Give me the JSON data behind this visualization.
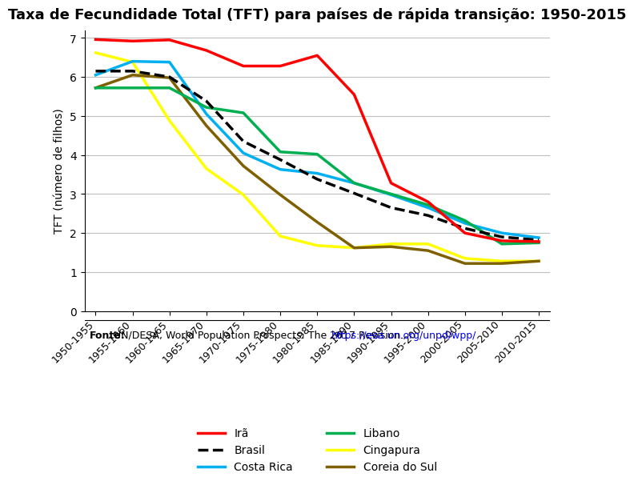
{
  "title": "Taxa de Fecundidade Total (TFT) para países de rápida transição: 1950-2015",
  "xlabel": "",
  "ylabel": "TFT (número de filhos)",
  "ylim": [
    0,
    7.2
  ],
  "yticks": [
    0,
    1,
    2,
    3,
    4,
    5,
    6,
    7
  ],
  "periods": [
    "1950-1955",
    "1955-1960",
    "1960-1965",
    "1965-1970",
    "1970-1975",
    "1975-1980",
    "1980-1985",
    "1985-1990",
    "1990-1995",
    "1995-2000",
    "2000-2005",
    "2005-2010",
    "2010-2015"
  ],
  "series": {
    "Irã": {
      "values": [
        6.96,
        6.92,
        6.95,
        6.68,
        6.28,
        6.28,
        6.55,
        5.55,
        3.28,
        2.8,
        2.0,
        1.8,
        1.78
      ],
      "color": "#FF0000",
      "linestyle": "-",
      "linewidth": 2.5,
      "zorder": 5
    },
    "Brasil": {
      "values": [
        6.15,
        6.15,
        6.0,
        5.38,
        4.35,
        3.88,
        3.38,
        3.02,
        2.65,
        2.45,
        2.12,
        1.9,
        1.82
      ],
      "color": "#000000",
      "linestyle": "--",
      "linewidth": 2.5,
      "zorder": 4
    },
    "Costa Rica": {
      "values": [
        6.05,
        6.4,
        6.38,
        5.05,
        4.05,
        3.63,
        3.53,
        3.28,
        2.98,
        2.65,
        2.25,
        2.0,
        1.88
      ],
      "color": "#00B0F0",
      "linestyle": "-",
      "linewidth": 2.5,
      "zorder": 3
    },
    "Libano": {
      "values": [
        5.72,
        5.72,
        5.72,
        5.22,
        5.08,
        4.08,
        4.02,
        3.28,
        3.0,
        2.72,
        2.32,
        1.72,
        1.75
      ],
      "color": "#00B050",
      "linestyle": "-",
      "linewidth": 2.5,
      "zorder": 3
    },
    "Cingapura": {
      "values": [
        6.62,
        6.38,
        4.88,
        3.65,
        2.98,
        1.92,
        1.68,
        1.62,
        1.72,
        1.72,
        1.35,
        1.28,
        1.28
      ],
      "color": "#FFFF00",
      "linestyle": "-",
      "linewidth": 2.5,
      "zorder": 2
    },
    "Coreia do Sul": {
      "values": [
        5.72,
        6.05,
        5.98,
        4.75,
        3.72,
        2.98,
        2.28,
        1.62,
        1.65,
        1.55,
        1.22,
        1.22,
        1.28
      ],
      "color": "#7F6000",
      "linestyle": "-",
      "linewidth": 2.5,
      "zorder": 2
    }
  },
  "fonte_text": "Fonte:",
  "fonte_body": " UN/DESA, World Population Prospects: The 2017 Revision. ",
  "fonte_url": "https://esa.un.org/unpd/wpp/",
  "background_color": "#FFFFFF",
  "grid_color": "#BFBFBF"
}
